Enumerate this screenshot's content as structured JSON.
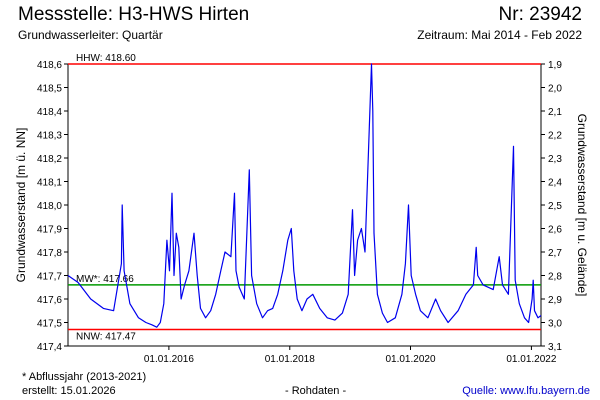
{
  "header": {
    "title": "Messstelle: H3-HWS Hirten",
    "number": "Nr: 23942",
    "aquifer": "Grundwasserleiter: Quartär",
    "period": "Zeitraum: Mai 2014 - Feb 2022"
  },
  "footer": {
    "footnote": "* Abflussjahr (2013-2021)",
    "created": "erstellt:  15.01.2026",
    "rawdata": "- Rohdaten -",
    "source": "Quelle: www.lfu.bayern.de"
  },
  "chart_data": {
    "type": "line",
    "ylabel": "Grundwasserstand [m ü. NN]",
    "y2label": "Grundwasserstand [m u. Gelände]",
    "ylim": [
      417.4,
      418.6
    ],
    "y_ticks": [
      "417,4",
      "417,5",
      "417,6",
      "417,7",
      "417,8",
      "417,9",
      "418,0",
      "418,1",
      "418,2",
      "418,3",
      "418,4",
      "418,5",
      "418,6"
    ],
    "y2_ticks": [
      "3,1",
      "3,0",
      "2,9",
      "2,8",
      "2,7",
      "2,6",
      "2,5",
      "2,4",
      "2,3",
      "2,2",
      "2,1",
      "2,0",
      "1,9"
    ],
    "x_ticks": [
      {
        "date": "2016-01-01",
        "label": "01.01.2016"
      },
      {
        "date": "2018-01-01",
        "label": "01.01.2018"
      },
      {
        "date": "2020-01-01",
        "label": "01.01.2020"
      },
      {
        "date": "2022-01-01",
        "label": "01.01.2022"
      }
    ],
    "xlim": [
      "2014-05-01",
      "2022-02-28"
    ],
    "reference_lines": [
      {
        "label": "HHW: 418.60",
        "value": 418.6,
        "color": "#ff0000"
      },
      {
        "label": "MW*: 417.66",
        "value": 417.66,
        "color": "#009900"
      },
      {
        "label": "NNW: 417.47",
        "value": 417.47,
        "color": "#ff0000"
      }
    ],
    "series": [
      {
        "color": "#0000ee",
        "points": [
          [
            "2014-05-01",
            417.7
          ],
          [
            "2014-07-01",
            417.67
          ],
          [
            "2014-09-15",
            417.6
          ],
          [
            "2014-12-01",
            417.56
          ],
          [
            "2015-02-01",
            417.55
          ],
          [
            "2015-03-20",
            417.75
          ],
          [
            "2015-03-25",
            418.0
          ],
          [
            "2015-04-05",
            417.72
          ],
          [
            "2015-05-10",
            417.58
          ],
          [
            "2015-07-01",
            417.52
          ],
          [
            "2015-08-15",
            417.5
          ],
          [
            "2015-09-20",
            417.49
          ],
          [
            "2015-10-20",
            417.48
          ],
          [
            "2015-11-10",
            417.5
          ],
          [
            "2015-12-01",
            417.58
          ],
          [
            "2015-12-20",
            417.85
          ],
          [
            "2016-01-05",
            417.72
          ],
          [
            "2016-01-20",
            418.05
          ],
          [
            "2016-02-01",
            417.7
          ],
          [
            "2016-02-15",
            417.88
          ],
          [
            "2016-03-01",
            417.82
          ],
          [
            "2016-03-15",
            417.6
          ],
          [
            "2016-04-05",
            417.66
          ],
          [
            "2016-05-01",
            417.72
          ],
          [
            "2016-06-01",
            417.88
          ],
          [
            "2016-06-20",
            417.7
          ],
          [
            "2016-07-10",
            417.56
          ],
          [
            "2016-08-10",
            417.52
          ],
          [
            "2016-09-10",
            417.55
          ],
          [
            "2016-10-10",
            417.62
          ],
          [
            "2016-11-10",
            417.72
          ],
          [
            "2016-12-05",
            417.8
          ],
          [
            "2017-01-10",
            417.78
          ],
          [
            "2017-02-01",
            418.05
          ],
          [
            "2017-02-10",
            417.72
          ],
          [
            "2017-03-01",
            417.65
          ],
          [
            "2017-04-01",
            417.6
          ],
          [
            "2017-05-01",
            418.15
          ],
          [
            "2017-05-15",
            417.7
          ],
          [
            "2017-06-15",
            417.58
          ],
          [
            "2017-07-20",
            417.52
          ],
          [
            "2017-08-20",
            417.55
          ],
          [
            "2017-09-20",
            417.56
          ],
          [
            "2017-10-20",
            417.62
          ],
          [
            "2017-11-20",
            417.72
          ],
          [
            "2017-12-20",
            417.85
          ],
          [
            "2018-01-10",
            417.9
          ],
          [
            "2018-01-25",
            417.72
          ],
          [
            "2018-02-15",
            417.6
          ],
          [
            "2018-03-15",
            417.55
          ],
          [
            "2018-04-15",
            417.6
          ],
          [
            "2018-05-20",
            417.62
          ],
          [
            "2018-07-01",
            417.56
          ],
          [
            "2018-08-15",
            417.52
          ],
          [
            "2018-10-01",
            417.51
          ],
          [
            "2018-11-15",
            417.54
          ],
          [
            "2018-12-20",
            417.62
          ],
          [
            "2019-01-15",
            417.98
          ],
          [
            "2019-01-28",
            417.7
          ],
          [
            "2019-02-15",
            417.85
          ],
          [
            "2019-03-10",
            417.9
          ],
          [
            "2019-04-01",
            417.8
          ],
          [
            "2019-05-10",
            418.6
          ],
          [
            "2019-05-18",
            418.4
          ],
          [
            "2019-05-25",
            417.88
          ],
          [
            "2019-06-15",
            417.62
          ],
          [
            "2019-07-15",
            417.54
          ],
          [
            "2019-08-15",
            417.5
          ],
          [
            "2019-10-01",
            417.52
          ],
          [
            "2019-11-10",
            417.62
          ],
          [
            "2019-12-01",
            417.75
          ],
          [
            "2019-12-20",
            418.0
          ],
          [
            "2020-01-05",
            417.7
          ],
          [
            "2020-02-01",
            417.62
          ],
          [
            "2020-03-01",
            417.55
          ],
          [
            "2020-04-15",
            417.52
          ],
          [
            "2020-06-01",
            417.6
          ],
          [
            "2020-07-01",
            417.55
          ],
          [
            "2020-08-15",
            417.5
          ],
          [
            "2020-10-15",
            417.55
          ],
          [
            "2020-12-01",
            417.62
          ],
          [
            "2021-01-15",
            417.66
          ],
          [
            "2021-02-01",
            417.82
          ],
          [
            "2021-02-10",
            417.7
          ],
          [
            "2021-03-15",
            417.66
          ],
          [
            "2021-05-15",
            417.64
          ],
          [
            "2021-06-20",
            417.78
          ],
          [
            "2021-07-10",
            417.66
          ],
          [
            "2021-08-15",
            417.62
          ],
          [
            "2021-09-15",
            418.25
          ],
          [
            "2021-09-25",
            417.68
          ],
          [
            "2021-10-20",
            417.58
          ],
          [
            "2021-11-20",
            417.52
          ],
          [
            "2021-12-15",
            417.5
          ],
          [
            "2022-01-05",
            417.6
          ],
          [
            "2022-01-12",
            417.68
          ],
          [
            "2022-01-20",
            417.55
          ],
          [
            "2022-02-10",
            417.52
          ],
          [
            "2022-02-28",
            417.53
          ]
        ]
      }
    ]
  }
}
